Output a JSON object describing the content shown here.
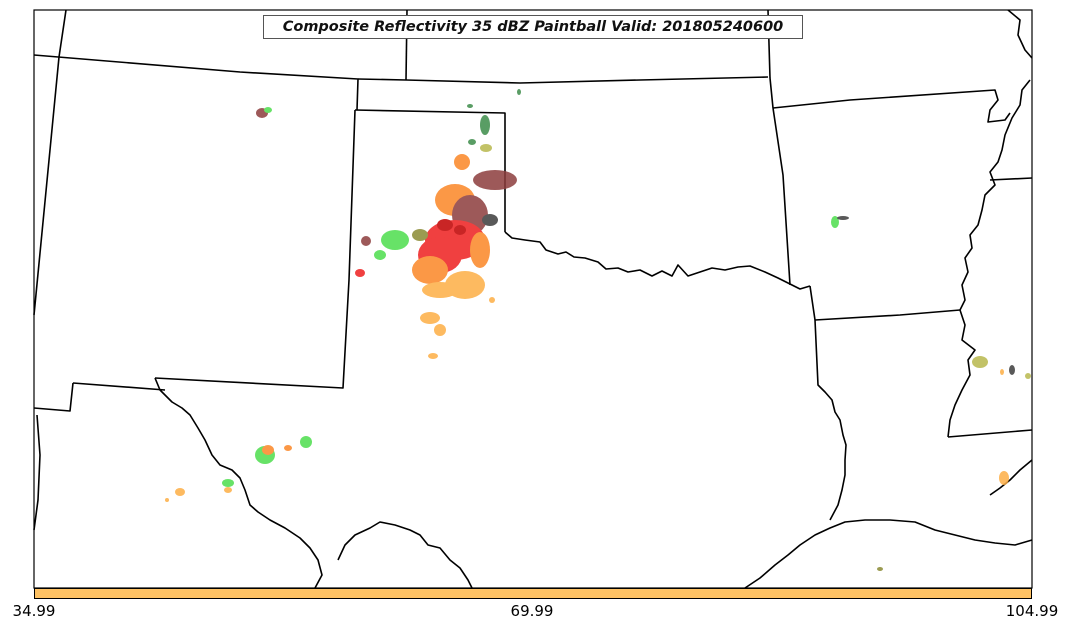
{
  "title": "Composite Reflectivity 35 dBZ Paintball Valid: 201805240600",
  "colorbar": {
    "color": "#fec264",
    "ticks": [
      "34.99",
      "69.99",
      "104.99"
    ]
  },
  "colors": {
    "light_green": "#4ddd4d",
    "dark_green": "#3d8c4a",
    "olive": "#8a8a33",
    "khaki": "#b8b84d",
    "orange": "#fb8726",
    "light_orange": "#fdae45",
    "red": "#ee1f1f",
    "brown": "#8c3d3d",
    "dark_gray": "#3d3d3d",
    "state_lines": "#000000"
  }
}
